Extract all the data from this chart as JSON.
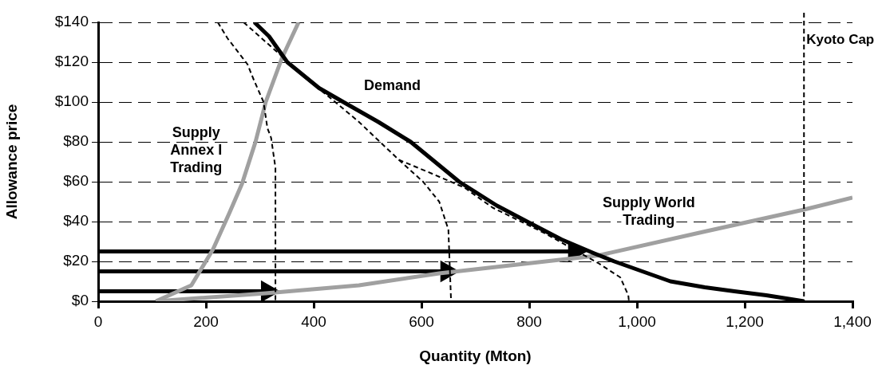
{
  "chart_data": {
    "type": "line",
    "xlabel": "Quantity (Mton)",
    "ylabel": "Allowance price",
    "xlim": [
      0,
      1400
    ],
    "ylim": [
      0,
      140
    ],
    "xticks": [
      0,
      200,
      400,
      600,
      800,
      {
        "value": 1000,
        "label": "1,000"
      },
      {
        "value": 1200,
        "label": "1,200"
      },
      {
        "value": 1400,
        "label": "1,400"
      }
    ],
    "yticks": [
      {
        "value": 0,
        "label": "$0"
      },
      {
        "value": 20,
        "label": "$20"
      },
      {
        "value": 40,
        "label": "$40"
      },
      {
        "value": 60,
        "label": "$60"
      },
      {
        "value": 80,
        "label": "$80"
      },
      {
        "value": 100,
        "label": "$100"
      },
      {
        "value": 120,
        "label": "$120"
      },
      {
        "value": 140,
        "label": "$140"
      }
    ],
    "grid": "y",
    "legend": false,
    "series": [
      {
        "color": "#000000",
        "line_style": "solid",
        "x": [
          290,
          317,
          351,
          410,
          455,
          520,
          580,
          670,
          740,
          796,
          860,
          921,
          958,
          1010,
          1062,
          1126,
          1181,
          1240,
          1310
        ],
        "values": [
          140,
          133,
          120,
          107,
          100,
          90,
          80,
          60,
          48,
          40,
          31,
          24,
          20,
          15,
          10,
          7,
          5,
          3,
          0
        ]
      },
      {
        "color": "#000000",
        "line_style": "dashed",
        "x": [
          222,
          240,
          277,
          289,
          307,
          314,
          321,
          329,
          329
        ],
        "values": [
          140,
          132,
          119,
          111,
          100,
          87,
          82,
          67,
          0
        ]
      },
      {
        "color": "#000000",
        "line_style": "dashed",
        "x": [
          270,
          341,
          376,
          440,
          484,
          558,
          603,
          633,
          650,
          655
        ],
        "values": [
          140,
          123,
          114,
          100,
          90,
          71,
          60,
          50,
          36,
          0
        ]
      },
      {
        "color": "#000000",
        "line_style": "dashed",
        "x": [
          558,
          620,
          680,
          732,
          830,
          929,
          969,
          984,
          985
        ],
        "values": [
          71,
          64,
          57,
          47,
          34,
          19,
          12,
          3,
          0
        ]
      },
      {
        "color": "#a0a0a0",
        "line_style": "solid",
        "x": [
          107,
          173,
          213,
          243,
          267,
          292,
          311,
          341,
          372
        ],
        "values": [
          0,
          8,
          26,
          44,
          59,
          80,
          100,
          122,
          140
        ]
      },
      {
        "color": "#a0a0a0",
        "line_style": "solid",
        "x": [
          107,
          311,
          484,
          633,
          929,
          1126,
          1310,
          1400
        ],
        "values": [
          0,
          4,
          8,
          14,
          23,
          35,
          46,
          52
        ]
      },
      {
        "color": "#000000",
        "line_style": "solid",
        "marker": "triangle",
        "x": [
          0,
          314
        ],
        "values": [
          5,
          5
        ]
      },
      {
        "color": "#000000",
        "line_style": "solid",
        "marker": "triangle",
        "x": [
          0,
          647
        ],
        "values": [
          15,
          15
        ]
      },
      {
        "color": "#000000",
        "line_style": "solid",
        "marker": "triangle",
        "x": [
          0,
          884
        ],
        "values": [
          25,
          25
        ]
      }
    ],
    "ref_lines": [
      {
        "axis": "x",
        "value": 1310,
        "label": "Kyoto Cap",
        "line_style": "dashed",
        "color": "#000000"
      }
    ],
    "annotations": [
      "Demand",
      "Supply\nAnnex I\nTrading",
      "Supply World\nTrading"
    ]
  }
}
